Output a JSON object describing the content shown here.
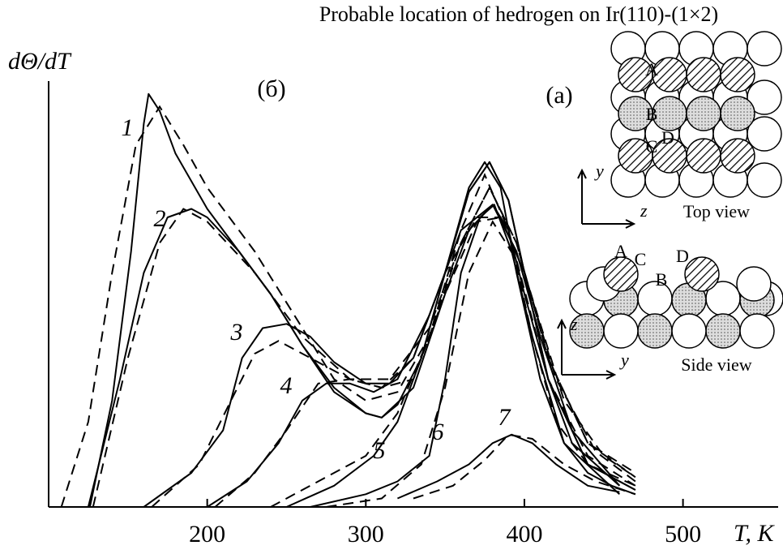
{
  "chart_data": {
    "type": "line",
    "title": "Probable location of hedrogen on Ir(110)-(1×2)",
    "y_label": "dΘ/dT",
    "x_label": "T, K",
    "panel_labels": [
      "(б)",
      "(а)"
    ],
    "xlim": [
      100,
      560
    ],
    "xticks": [
      200,
      300,
      400,
      500
    ],
    "ylim": [
      0,
      1
    ],
    "color": "#000000",
    "series": [
      {
        "name": "1",
        "x": [
          126,
          140,
          152,
          160,
          163,
          170,
          180,
          200,
          220,
          240,
          260,
          280,
          300,
          310,
          320,
          335,
          350,
          365,
          375,
          385,
          395,
          410,
          425,
          440,
          455,
          470
        ],
        "values": [
          0,
          0.25,
          0.6,
          0.9,
          0.97,
          0.93,
          0.83,
          0.7,
          0.6,
          0.5,
          0.38,
          0.27,
          0.22,
          0.21,
          0.24,
          0.35,
          0.55,
          0.75,
          0.81,
          0.75,
          0.55,
          0.3,
          0.15,
          0.08,
          0.05,
          0.03
        ],
        "fit_x": [
          108,
          125,
          140,
          155,
          170,
          185,
          200,
          230,
          260,
          280,
          300,
          320,
          340,
          360,
          375,
          390,
          405,
          420,
          440,
          470
        ],
        "fit_values": [
          0,
          0.2,
          0.55,
          0.85,
          0.94,
          0.85,
          0.75,
          0.6,
          0.42,
          0.3,
          0.25,
          0.27,
          0.4,
          0.65,
          0.78,
          0.65,
          0.4,
          0.2,
          0.1,
          0.05
        ]
      },
      {
        "name": "2",
        "x": [
          125,
          145,
          160,
          175,
          190,
          200,
          220,
          240,
          260,
          280,
          300,
          310,
          330,
          350,
          365,
          380,
          390,
          400,
          415,
          430,
          460
        ],
        "values": [
          0,
          0.3,
          0.55,
          0.68,
          0.7,
          0.68,
          0.6,
          0.5,
          0.38,
          0.28,
          0.22,
          0.21,
          0.28,
          0.5,
          0.65,
          0.71,
          0.65,
          0.5,
          0.3,
          0.15,
          0.05
        ],
        "fit_x": [
          128,
          150,
          170,
          185,
          200,
          230,
          260,
          290,
          310,
          330,
          350,
          370,
          385,
          400,
          420,
          445,
          470
        ],
        "fit_values": [
          0,
          0.35,
          0.62,
          0.7,
          0.67,
          0.55,
          0.4,
          0.3,
          0.28,
          0.3,
          0.5,
          0.67,
          0.68,
          0.55,
          0.3,
          0.13,
          0.06
        ]
      },
      {
        "name": "3",
        "x": [
          160,
          190,
          210,
          222,
          235,
          250,
          265,
          280,
          300,
          315,
          330,
          350,
          365,
          378,
          390,
          400,
          415,
          440,
          470
        ],
        "values": [
          0,
          0.08,
          0.18,
          0.35,
          0.42,
          0.43,
          0.4,
          0.34,
          0.29,
          0.29,
          0.35,
          0.55,
          0.74,
          0.81,
          0.72,
          0.55,
          0.3,
          0.1,
          0.04
        ],
        "fit_x": [
          165,
          195,
          215,
          230,
          245,
          265,
          290,
          315,
          340,
          360,
          378,
          395,
          415,
          440,
          470
        ],
        "fit_values": [
          0,
          0.1,
          0.25,
          0.36,
          0.39,
          0.35,
          0.3,
          0.3,
          0.42,
          0.62,
          0.75,
          0.62,
          0.35,
          0.15,
          0.08
        ]
      },
      {
        "name": "4",
        "x": [
          200,
          225,
          245,
          260,
          275,
          290,
          305,
          320,
          340,
          360,
          380,
          395,
          410,
          430,
          460
        ],
        "values": [
          0,
          0.06,
          0.15,
          0.25,
          0.29,
          0.29,
          0.27,
          0.3,
          0.45,
          0.65,
          0.71,
          0.6,
          0.4,
          0.18,
          0.05
        ],
        "fit_x": [
          205,
          230,
          250,
          270,
          290,
          310,
          330,
          350,
          370,
          385,
          400,
          425,
          450,
          470
        ],
        "fit_values": [
          0,
          0.08,
          0.18,
          0.29,
          0.3,
          0.28,
          0.35,
          0.55,
          0.68,
          0.68,
          0.55,
          0.25,
          0.12,
          0.07
        ]
      },
      {
        "name": "5",
        "x": [
          250,
          280,
          305,
          320,
          335,
          350,
          365,
          378,
          390,
          400,
          415,
          440,
          470
        ],
        "values": [
          0,
          0.05,
          0.12,
          0.2,
          0.35,
          0.55,
          0.74,
          0.81,
          0.72,
          0.55,
          0.3,
          0.1,
          0.04
        ],
        "fit_x": [
          240,
          270,
          300,
          320,
          340,
          360,
          378,
          395,
          415,
          440,
          470
        ],
        "fit_values": [
          0,
          0.06,
          0.12,
          0.22,
          0.4,
          0.62,
          0.75,
          0.62,
          0.35,
          0.15,
          0.07
        ]
      },
      {
        "name": "6",
        "x": [
          265,
          300,
          320,
          340,
          350,
          360,
          372,
          381,
          392,
          405,
          425,
          460
        ],
        "values": [
          0,
          0.03,
          0.06,
          0.12,
          0.3,
          0.55,
          0.68,
          0.71,
          0.6,
          0.4,
          0.15,
          0.03
        ],
        "fit_x": [
          275,
          310,
          335,
          350,
          365,
          380,
          395,
          415,
          440,
          470
        ],
        "fit_values": [
          0,
          0.02,
          0.1,
          0.28,
          0.55,
          0.67,
          0.58,
          0.3,
          0.12,
          0.05
        ]
      },
      {
        "name": "7",
        "x": [
          320,
          345,
          365,
          380,
          392,
          405,
          420,
          440,
          460
        ],
        "values": [
          0.02,
          0.06,
          0.1,
          0.15,
          0.17,
          0.15,
          0.1,
          0.05,
          0.035
        ],
        "fit_x": [
          330,
          355,
          375,
          390,
          405,
          425,
          445,
          470
        ],
        "fit_values": [
          0.02,
          0.05,
          0.11,
          0.17,
          0.16,
          0.1,
          0.06,
          0.03
        ]
      }
    ]
  },
  "inset": {
    "top_view": {
      "labels": [
        "A",
        "B",
        "C",
        "D"
      ],
      "axes": [
        "y",
        "z"
      ],
      "caption": "Top view"
    },
    "side_view": {
      "labels": [
        "A",
        "C",
        "B",
        "D"
      ],
      "axes": [
        "z",
        "y"
      ],
      "caption": "Side view"
    }
  }
}
